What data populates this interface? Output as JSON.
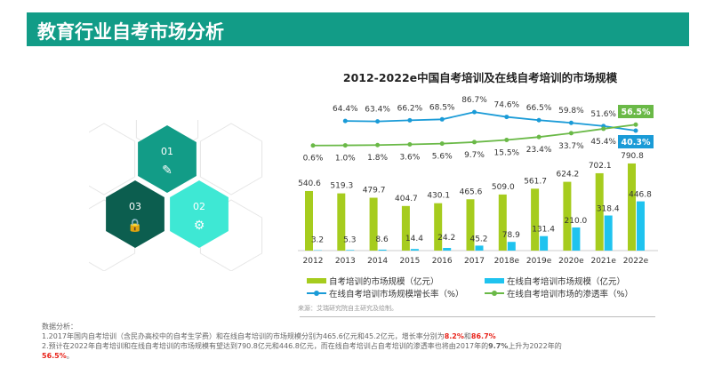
{
  "header": {
    "title": "教育行业自考市场分析"
  },
  "hexagons": [
    {
      "label": "01",
      "icon": "pencil-icon",
      "color": "#129c87"
    },
    {
      "label": "02",
      "icon": "gear-icon",
      "color": "#3ee8d4"
    },
    {
      "label": "03",
      "icon": "lock-icon",
      "color": "#0c5e4f"
    }
  ],
  "chart_data": {
    "type": "bar",
    "title": "2012-2022e中国自考培训及在线自考培训的市场规模",
    "categories": [
      "2012",
      "2013",
      "2014",
      "2015",
      "2016",
      "2017",
      "2018e",
      "2019e",
      "2020e",
      "2021e",
      "2022e"
    ],
    "series": [
      {
        "name": "自考培训的市场规模（亿元）",
        "type": "bar",
        "color": "#a6cc1e",
        "values": [
          540.6,
          519.3,
          479.7,
          404.7,
          430.1,
          465.6,
          509.0,
          561.7,
          624.2,
          702.1,
          790.8
        ],
        "labels": [
          "540.6",
          "519.3",
          "479.7",
          "404.7",
          "430.1",
          "465.6",
          "509.0",
          "561.7",
          "624.2",
          "702.1",
          "790.8"
        ]
      },
      {
        "name": "在线自考培训市场规模（亿元）",
        "type": "bar",
        "color": "#1fc3ef",
        "values": [
          3.2,
          5.3,
          8.6,
          14.4,
          24.2,
          45.2,
          78.9,
          131.4,
          210.0,
          318.4,
          446.8
        ],
        "labels": [
          "3.2",
          "5.3",
          "8.6",
          "14.4",
          "24.2",
          "45.2",
          "78.9",
          "131.4",
          "210.0",
          "318.4",
          "446.8"
        ]
      },
      {
        "name": "在线自考培训市场规模增长率（%）",
        "type": "line",
        "color": "#1a9bd7",
        "values": [
          null,
          64.4,
          63.4,
          66.2,
          68.5,
          86.7,
          74.6,
          66.5,
          59.8,
          51.6,
          40.3
        ],
        "labels": [
          "",
          "64.4%",
          "63.4%",
          "66.2%",
          "68.5%",
          "86.7%",
          "74.6%",
          "66.5%",
          "59.8%",
          "51.6%",
          "40.3%"
        ]
      },
      {
        "name": "在线自考培训市场的渗透率（%）",
        "type": "line",
        "color": "#6ab947",
        "values": [
          0.6,
          1.0,
          1.8,
          3.6,
          5.6,
          9.7,
          15.5,
          23.4,
          33.7,
          45.4,
          56.5
        ],
        "labels": [
          "0.6%",
          "1.0%",
          "1.8%",
          "3.6%",
          "5.6%",
          "9.7%",
          "15.5%",
          "23.4%",
          "33.7%",
          "45.4%",
          "56.5%"
        ]
      }
    ],
    "legend": "bottom"
  },
  "source": "来源：艾瑞研究院自主研究及绘制。",
  "analysis": {
    "heading": "数据分析：",
    "line1a": "1.2017年国内自考培训（含民办高校中的自考生学费）和在线自考培训的市场规模分别为465.6亿元和45.2亿元，增长率分别为",
    "line1b": "8.2%",
    "line1c": "和",
    "line1d": "86.7%",
    "line2a": "2.预计在2022年自考培训和在线自考培训的市场规模有望达到790.8亿元和446.8亿元，而在线自考培训占自考培训的渗透率也将由2017年的",
    "line2b": "9.7%",
    "line2c": "上升为2022年的",
    "line2d": "56.5%",
    "line2e": "。"
  }
}
